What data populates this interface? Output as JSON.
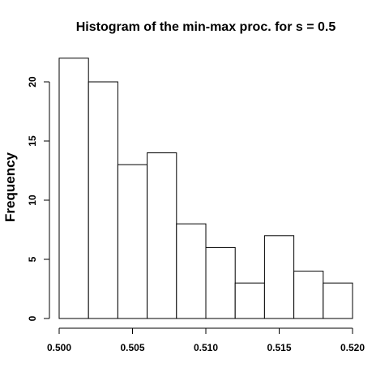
{
  "chart_data": {
    "type": "bar",
    "title": "Histogram of the min-max proc. for s = 0.5",
    "xlabel": "",
    "ylabel": "Frequency",
    "bins": [
      {
        "start": 0.5,
        "end": 0.502,
        "count": 22
      },
      {
        "start": 0.502,
        "end": 0.504,
        "count": 20
      },
      {
        "start": 0.504,
        "end": 0.506,
        "count": 13
      },
      {
        "start": 0.506,
        "end": 0.508,
        "count": 14
      },
      {
        "start": 0.508,
        "end": 0.51,
        "count": 8
      },
      {
        "start": 0.51,
        "end": 0.512,
        "count": 6
      },
      {
        "start": 0.512,
        "end": 0.514,
        "count": 3
      },
      {
        "start": 0.514,
        "end": 0.516,
        "count": 7
      },
      {
        "start": 0.516,
        "end": 0.518,
        "count": 4
      },
      {
        "start": 0.518,
        "end": 0.52,
        "count": 3
      }
    ],
    "xlim": [
      0.5,
      0.52
    ],
    "ylim": [
      0,
      22
    ],
    "x_ticks": [
      {
        "value": 0.5,
        "label": "0.500"
      },
      {
        "value": 0.505,
        "label": "0.505"
      },
      {
        "value": 0.51,
        "label": "0.510"
      },
      {
        "value": 0.515,
        "label": "0.515"
      },
      {
        "value": 0.52,
        "label": "0.520"
      }
    ],
    "y_ticks": [
      {
        "value": 0,
        "label": "0"
      },
      {
        "value": 5,
        "label": "5"
      },
      {
        "value": 10,
        "label": "10"
      },
      {
        "value": 15,
        "label": "15"
      },
      {
        "value": 20,
        "label": "20"
      }
    ],
    "grid": false,
    "legend": "none"
  }
}
